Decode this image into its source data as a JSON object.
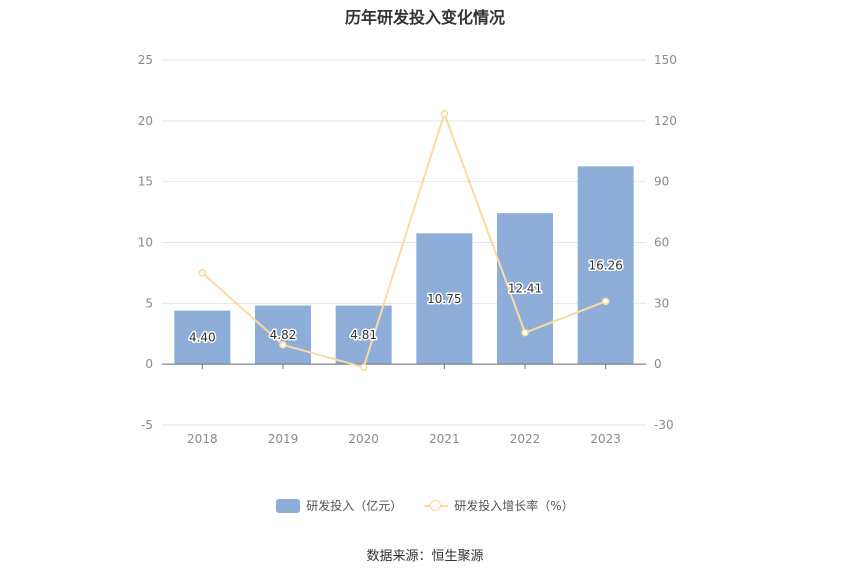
{
  "chart_data": {
    "type": "bar",
    "title": "历年研发投入变化情况",
    "categories": [
      "2018",
      "2019",
      "2020",
      "2021",
      "2022",
      "2023"
    ],
    "series": [
      {
        "name": "研发投入（亿元）",
        "kind": "bar",
        "axis": "left",
        "values": [
          4.4,
          4.82,
          4.81,
          10.75,
          12.41,
          16.26
        ],
        "labels": [
          "4.40",
          "4.82",
          "4.81",
          "10.75",
          "12.41",
          "16.26"
        ],
        "color": "#8eadd9"
      },
      {
        "name": "研发投入增长率（%）",
        "kind": "line",
        "axis": "right",
        "values": [
          45.0,
          9.5,
          -1.5,
          123.5,
          15.5,
          31.0
        ],
        "color": "#fbdaa0"
      }
    ],
    "y_left": {
      "min": -5,
      "max": 25,
      "ticks": [
        "-5",
        "0",
        "5",
        "10",
        "15",
        "20",
        "25"
      ]
    },
    "y_right": {
      "min": -30,
      "max": 150,
      "ticks": [
        "-30",
        "0",
        "30",
        "60",
        "90",
        "120",
        "150"
      ]
    },
    "grid": true,
    "legend_position": "bottom-center"
  },
  "source": "数据来源：恒生聚源"
}
